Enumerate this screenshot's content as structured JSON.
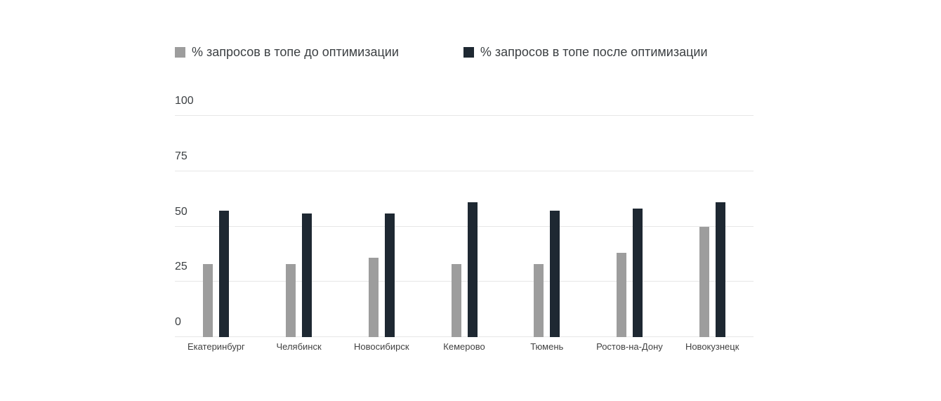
{
  "chart_data": {
    "type": "bar",
    "title": "",
    "xlabel": "",
    "ylabel": "",
    "categories": [
      "Екатеринбург",
      "Челябинск",
      "Новосибирск",
      "Кемерово",
      "Тюмень",
      "Ростов-на-Дону",
      "Новокузнецк"
    ],
    "series": [
      {
        "name": "% запросов в топе до оптимизации",
        "color": "#9d9d9d",
        "values": [
          33,
          33,
          36,
          33,
          33,
          38,
          50
        ]
      },
      {
        "name": "% запросов в топе после оптимизации",
        "color": "#1e2832",
        "values": [
          57,
          56,
          56,
          61,
          57,
          58,
          61
        ]
      }
    ],
    "ylim": [
      0,
      100
    ],
    "yticks": [
      0,
      25,
      50,
      75,
      100
    ],
    "grid": true,
    "grid_color": "#e7e7e7",
    "legend_position": "top",
    "background_color": "#ffffff"
  }
}
